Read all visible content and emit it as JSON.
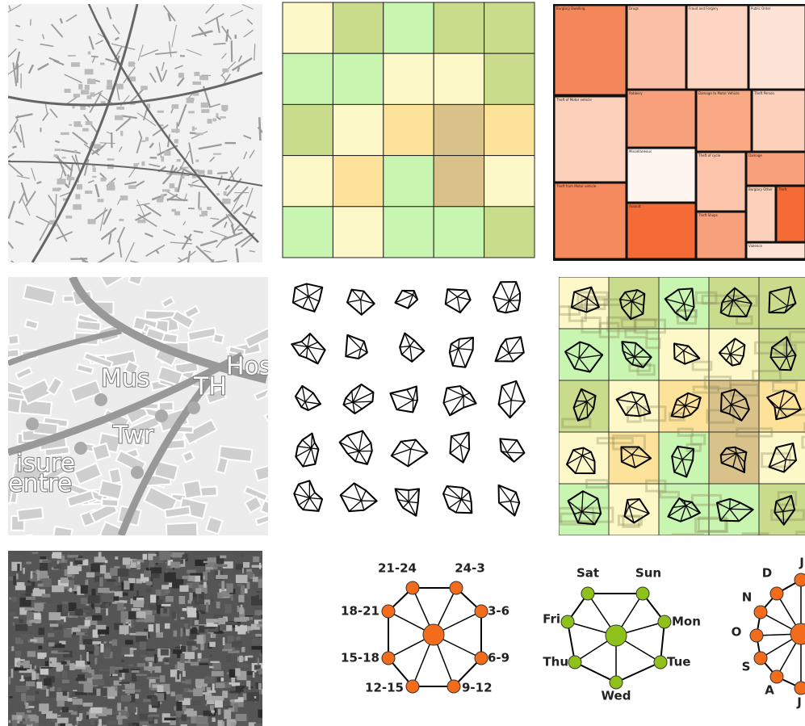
{
  "treemap": {
    "labels": [
      "Burglary Dwelling",
      "Drugs",
      "Fraud and Forgery",
      "Public Order",
      "Theft of Motor vehicle",
      "Robbery",
      "Damage to Motor Vehicle",
      "Theft Person",
      "Miscellaneous",
      "Theft of cycle",
      "Damage",
      "Theft from Motor vehicle",
      "Assault",
      "Theft Shops",
      "Burglary Other",
      "Theft",
      "Violence"
    ],
    "colors": [
      "#f4875a",
      "#fbc0a5",
      "#fdd5c2",
      "#fde3d6",
      "#fcd0bb",
      "#f8a07c",
      "#f9aa85",
      "#fcd0bb",
      "#fdf5f0",
      "#fcc4aa",
      "#f8a07c",
      "#f48a5d",
      "#f46b35",
      "#f8a07c",
      "#fcd0bb",
      "#f46b35",
      "#fde3d6"
    ]
  },
  "heatmap": {
    "colors": [
      [
        "#fdf8c8",
        "#c8dc8c",
        "#c8f5b0",
        "#c8dc8c",
        "#c8dc8c"
      ],
      [
        "#c8f5b0",
        "#c8f5b0",
        "#fdf8c8",
        "#fdf8c8",
        "#c8dc8c"
      ],
      [
        "#c8dc8c",
        "#fdf8c8",
        "#fde39a",
        "#d9c28a",
        "#fde39a"
      ],
      [
        "#fdf8c8",
        "#fde39a",
        "#c8f5b0",
        "#d9c28a",
        "#fdf8c8"
      ],
      [
        "#c8f5b0",
        "#fdf8c8",
        "#c8f5b0",
        "#c8f5b0",
        "#c8dc8c"
      ]
    ]
  },
  "map_labels": [
    "Mus",
    "TH",
    "Twr",
    "Hos",
    "isure",
    "entre"
  ],
  "legends": {
    "hours": [
      "21-24",
      "24-3",
      "3-6",
      "6-9",
      "9-12",
      "12-15",
      "15-18",
      "18-21"
    ],
    "hours_color": "#f26c1b",
    "days": [
      "Sat",
      "Sun",
      "Mon",
      "Tue",
      "Wed",
      "Thu",
      "Fri"
    ],
    "days_color": "#8ec21a",
    "months": [
      "J",
      "D",
      "N",
      "O",
      "S",
      "A",
      "J"
    ],
    "months_color": "#f26c1b"
  }
}
